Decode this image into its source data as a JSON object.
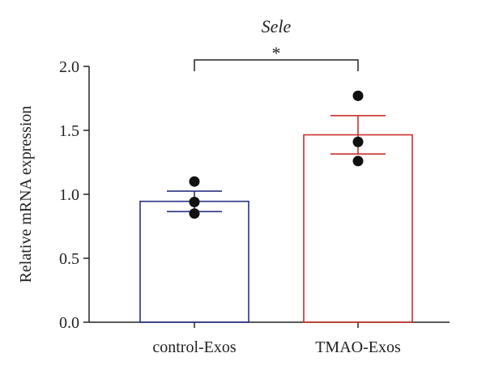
{
  "chart_data": {
    "type": "bar",
    "title": "Sele",
    "xlabel": "",
    "ylabel": "Relative mRNA expression",
    "ylim": [
      0,
      2.0
    ],
    "yticks": [
      "0.0",
      "0.5",
      "1.0",
      "1.5",
      "2.0"
    ],
    "categories": [
      "control-Exos",
      "TMAO-Exos"
    ],
    "values": [
      0.945,
      1.465
    ],
    "errors": [
      0.08,
      0.15
    ],
    "points": [
      [
        1.1,
        0.94,
        0.85
      ],
      [
        1.77,
        1.41,
        1.26
      ]
    ],
    "colors": [
      "#2b2f86",
      "#c9302c"
    ],
    "significance": {
      "label": "*",
      "between": [
        0,
        1
      ],
      "y": 2.0
    },
    "grid": false,
    "legend": "none"
  }
}
